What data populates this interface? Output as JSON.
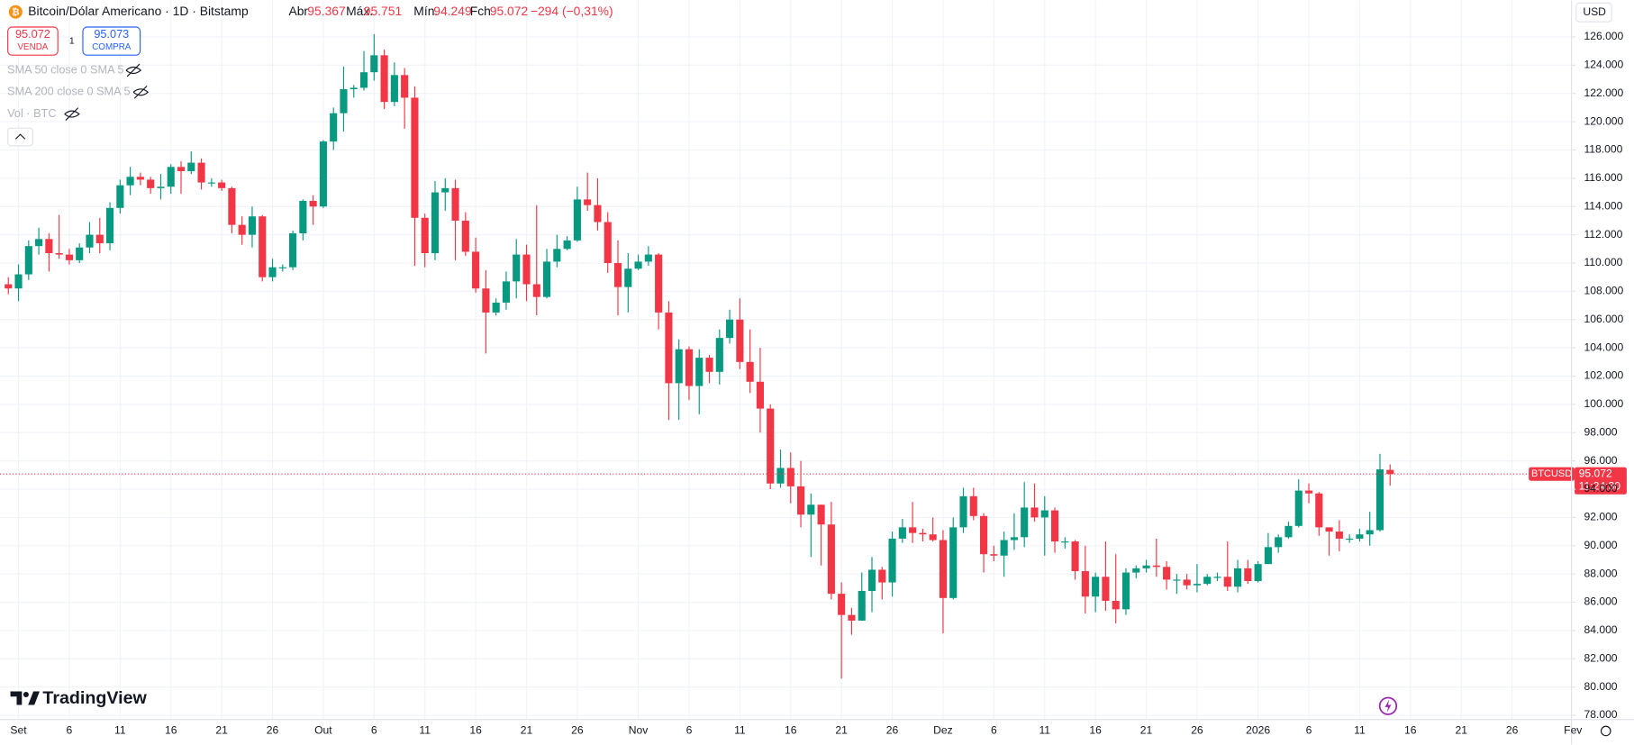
{
  "header": {
    "title": "Bitcoin/Dólar Americano · 1D · Bitstamp",
    "open_label": "Abr",
    "open": "95.367",
    "high_label": "Máx.",
    "high": "95.751",
    "low_label": "Mín.",
    "low": "94.249",
    "close_label": "Fch",
    "close": "95.072",
    "change": "−294 (−0,31%)",
    "sell_price": "95.072",
    "sell_label": "VENDA",
    "spread": "1",
    "buy_price": "95.073",
    "buy_label": "COMPRA",
    "indicators": [
      "SMA 50 close 0 SMA 5",
      "SMA 200 close 0 SMA 5",
      "Vol · BTC"
    ],
    "currency": "USD",
    "logo": "TradingView"
  },
  "chart_data": {
    "type": "candlestick",
    "up_color": "#089981",
    "down_color": "#f23645",
    "grid": true,
    "symbol": "BTCUSD",
    "last_price": {
      "value": 95072,
      "label": "95.072"
    },
    "countdown": "11:24:30",
    "xlim": [
      -0.82,
      153.85
    ],
    "xticks": [
      {
        "value": 1,
        "label": "Set"
      },
      {
        "value": 6,
        "label": "6"
      },
      {
        "value": 11,
        "label": "11"
      },
      {
        "value": 16,
        "label": "16"
      },
      {
        "value": 21,
        "label": "21"
      },
      {
        "value": 26,
        "label": "26"
      },
      {
        "value": 31,
        "label": "Out"
      },
      {
        "value": 36,
        "label": "6"
      },
      {
        "value": 41,
        "label": "11"
      },
      {
        "value": 46,
        "label": "16"
      },
      {
        "value": 51,
        "label": "21"
      },
      {
        "value": 56,
        "label": "26"
      },
      {
        "value": 62,
        "label": "Nov"
      },
      {
        "value": 67,
        "label": "6"
      },
      {
        "value": 72,
        "label": "11"
      },
      {
        "value": 77,
        "label": "16"
      },
      {
        "value": 82,
        "label": "21"
      },
      {
        "value": 87,
        "label": "26"
      },
      {
        "value": 92,
        "label": "Dez"
      },
      {
        "value": 97,
        "label": "6"
      },
      {
        "value": 102,
        "label": "11"
      },
      {
        "value": 107,
        "label": "16"
      },
      {
        "value": 112,
        "label": "21"
      },
      {
        "value": 117,
        "label": "26"
      },
      {
        "value": 123,
        "label": "2026"
      },
      {
        "value": 128,
        "label": "6"
      },
      {
        "value": 133,
        "label": "11"
      },
      {
        "value": 138,
        "label": "16"
      },
      {
        "value": 143,
        "label": "21"
      },
      {
        "value": 148,
        "label": "26"
      },
      {
        "value": 154,
        "label": "Fev"
      }
    ],
    "ylim": [
      77700,
      128580
    ],
    "yticks": [
      {
        "value": 78000,
        "label": "78.000"
      },
      {
        "value": 80000,
        "label": "80.000"
      },
      {
        "value": 82000,
        "label": "82.000"
      },
      {
        "value": 84000,
        "label": "84.000"
      },
      {
        "value": 86000,
        "label": "86.000"
      },
      {
        "value": 88000,
        "label": "88.000"
      },
      {
        "value": 90000,
        "label": "90.000"
      },
      {
        "value": 92000,
        "label": "92.000"
      },
      {
        "value": 94000,
        "label": "94.000"
      },
      {
        "value": 96000,
        "label": "96.000"
      },
      {
        "value": 98000,
        "label": "98.000"
      },
      {
        "value": 100000,
        "label": "100.000"
      },
      {
        "value": 102000,
        "label": "102.000"
      },
      {
        "value": 104000,
        "label": "104.000"
      },
      {
        "value": 106000,
        "label": "106.000"
      },
      {
        "value": 108000,
        "label": "108.000"
      },
      {
        "value": 110000,
        "label": "110.000"
      },
      {
        "value": 112000,
        "label": "112.000"
      },
      {
        "value": 114000,
        "label": "114.000"
      },
      {
        "value": 116000,
        "label": "116.000"
      },
      {
        "value": 118000,
        "label": "118.000"
      },
      {
        "value": 120000,
        "label": "120.000"
      },
      {
        "value": 122000,
        "label": "122.000"
      },
      {
        "value": 124000,
        "label": "124.000"
      },
      {
        "value": 126000,
        "label": "126.000"
      }
    ],
    "open": [
      108500,
      108200,
      109200,
      111200,
      111700,
      110700,
      110600,
      110200,
      111100,
      112000,
      111400,
      113900,
      115500,
      116100,
      115900,
      115300,
      115400,
      116800,
      116500,
      117100,
      115700,
      115700,
      115300,
      112700,
      112000,
      113300,
      109000,
      109700,
      109700,
      112100,
      114400,
      114000,
      118600,
      120600,
      122300,
      122400,
      123500,
      124700,
      121400,
      123300,
      121700,
      113200,
      110700,
      115000,
      115300,
      113000,
      110800,
      108200,
      106500,
      107200,
      108700,
      110600,
      108500,
      107600,
      110100,
      111000,
      111600,
      114500,
      114100,
      112900,
      110000,
      108300,
      109600,
      110100,
      110600,
      106500,
      101500,
      103900,
      101300,
      103300,
      102300,
      104700,
      106000,
      103000,
      101600,
      99700,
      94400,
      95500,
      94200,
      92200,
      92900,
      91500,
      86600,
      85100,
      84700,
      86800,
      88300,
      87400,
      90500,
      91300,
      90900,
      90800,
      90400,
      86300,
      91300,
      93500,
      92100,
      89400,
      89300,
      90400,
      90600,
      92700,
      92000,
      92500,
      90300,
      90300,
      88200,
      86400,
      87800,
      86100,
      85500,
      88100,
      88400,
      88600,
      88500,
      87600,
      87600,
      87200,
      87300,
      87800,
      87800,
      87100,
      88400,
      87500,
      88700,
      89900,
      90600,
      91400,
      93900,
      93700,
      91300,
      91000,
      90500,
      90500,
      90800,
      91100,
      95367
    ],
    "high": [
      109000,
      109900,
      111600,
      112500,
      112100,
      113400,
      111000,
      111400,
      112900,
      113200,
      114300,
      115900,
      116800,
      116400,
      116100,
      116300,
      117000,
      117200,
      117900,
      117400,
      116000,
      115900,
      115400,
      113300,
      114000,
      113400,
      110300,
      109900,
      112300,
      114500,
      114800,
      118700,
      121000,
      123900,
      122600,
      125000,
      126200,
      125100,
      124200,
      123800,
      122500,
      113500,
      115800,
      116000,
      115900,
      113600,
      111800,
      109500,
      107500,
      109400,
      111700,
      111300,
      114100,
      111000,
      112000,
      111900,
      115400,
      116400,
      116000,
      113600,
      111600,
      110700,
      110600,
      111200,
      110700,
      107300,
      104600,
      104100,
      103900,
      103500,
      105300,
      106700,
      107500,
      105300,
      104000,
      100000,
      96800,
      96600,
      96000,
      93700,
      92900,
      93100,
      87400,
      85600,
      88100,
      89200,
      88500,
      91000,
      91900,
      93100,
      91200,
      92000,
      91100,
      92000,
      94100,
      94100,
      92300,
      90000,
      91000,
      92300,
      94500,
      94400,
      93500,
      92700,
      90600,
      90400,
      90000,
      88100,
      90300,
      89400,
      88400,
      88600,
      89000,
      90500,
      88900,
      88000,
      88000,
      88700,
      88000,
      88100,
      90300,
      89000,
      89000,
      88900,
      90900,
      90800,
      91700,
      94700,
      94400,
      93800,
      91200,
      91800,
      90800,
      91200,
      92400,
      96500,
      95751
    ],
    "low": [
      107800,
      107300,
      108800,
      110600,
      109400,
      110300,
      109900,
      110000,
      110700,
      110700,
      110900,
      113500,
      114800,
      115500,
      114900,
      114500,
      114900,
      114900,
      116300,
      115200,
      115400,
      115100,
      112100,
      111300,
      111100,
      108700,
      108700,
      109400,
      109500,
      111600,
      112700,
      113900,
      118000,
      119300,
      121700,
      122200,
      122900,
      120900,
      121100,
      119500,
      109800,
      109700,
      110200,
      113700,
      110200,
      110500,
      107900,
      103600,
      106300,
      106700,
      107500,
      107300,
      106300,
      107500,
      109700,
      110900,
      111500,
      113700,
      112300,
      109300,
      106300,
      106500,
      109500,
      109800,
      105300,
      98900,
      98900,
      100300,
      99300,
      101500,
      101400,
      104300,
      102500,
      100800,
      98000,
      94000,
      94100,
      93000,
      91300,
      89200,
      88600,
      86200,
      80600,
      83700,
      84700,
      85300,
      86200,
      86400,
      90200,
      90200,
      90300,
      90300,
      83800,
      86200,
      90900,
      91800,
      88100,
      88900,
      87800,
      89700,
      89900,
      91700,
      89300,
      89500,
      89800,
      87600,
      85200,
      85300,
      85400,
      84500,
      85100,
      87700,
      88100,
      87800,
      86900,
      86600,
      86900,
      86700,
      87200,
      87500,
      86800,
      86700,
      87300,
      87400,
      88700,
      89500,
      90500,
      91300,
      93000,
      90700,
      89300,
      89600,
      90200,
      90300,
      90000,
      91000,
      94249
    ],
    "close": [
      108200,
      109200,
      111200,
      111700,
      110700,
      110600,
      110200,
      111100,
      112000,
      111400,
      113900,
      115500,
      116100,
      115900,
      115300,
      115400,
      116800,
      116500,
      117100,
      115700,
      115700,
      115300,
      112700,
      112000,
      113300,
      109000,
      109700,
      109700,
      112100,
      114400,
      114000,
      118600,
      120600,
      122300,
      122400,
      123500,
      124700,
      121400,
      123300,
      121700,
      113200,
      110700,
      115000,
      115300,
      113000,
      110800,
      108200,
      106500,
      107200,
      108700,
      110600,
      108500,
      107600,
      110100,
      111000,
      111600,
      114500,
      114100,
      112900,
      110000,
      108300,
      109600,
      110100,
      110600,
      106500,
      101500,
      103900,
      101300,
      103300,
      102300,
      104700,
      106000,
      103000,
      101600,
      99700,
      94400,
      95500,
      94200,
      92200,
      92900,
      91500,
      86600,
      85100,
      84700,
      86800,
      88300,
      87400,
      90500,
      91300,
      90900,
      90800,
      90400,
      86300,
      91300,
      93500,
      92100,
      89400,
      89300,
      90400,
      90600,
      92700,
      92000,
      92500,
      90300,
      90300,
      88200,
      86400,
      87800,
      86100,
      85500,
      88100,
      88400,
      88600,
      88500,
      87600,
      87600,
      87200,
      87300,
      87800,
      87800,
      87100,
      88400,
      87500,
      88700,
      89900,
      90600,
      91400,
      93900,
      93700,
      91300,
      91000,
      90500,
      90500,
      90800,
      91100,
      95400,
      95072
    ]
  }
}
